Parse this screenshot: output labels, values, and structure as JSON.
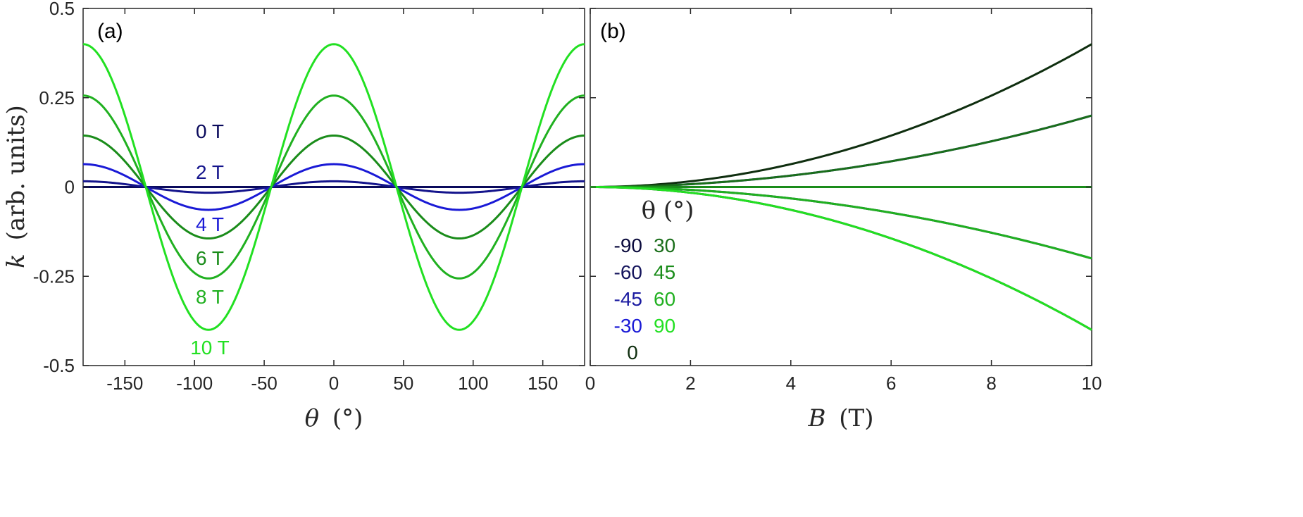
{
  "chart_data": [
    {
      "type": "line",
      "panel_label": "(a)",
      "xlabel_symbol": "θ",
      "xlabel_unit": "(°)",
      "ylabel_symbol": "k",
      "ylabel_unit": "(arb. units)",
      "xlim": [
        -180,
        180
      ],
      "ylim": [
        -0.5,
        0.5
      ],
      "xticks": [
        -150,
        -100,
        -50,
        0,
        50,
        100,
        150
      ],
      "xtick_labels": [
        "-150",
        "-100",
        "-50",
        "0",
        "50",
        "100",
        "150"
      ],
      "yticks": [
        -0.5,
        -0.25,
        0,
        0.25,
        0.5
      ],
      "ytick_labels": [
        "-0.5",
        "-0.25",
        "0",
        "0.25",
        "0.5"
      ],
      "grid": false,
      "model": "k = 0.004 * B^2 * cos(2*theta)",
      "series": [
        {
          "name": "0 T",
          "B": 0,
          "color": "#0a0a5c",
          "amplitude": 0.0
        },
        {
          "name": "2 T",
          "B": 2,
          "color": "#14148c",
          "amplitude": 0.016
        },
        {
          "name": "4 T",
          "B": 4,
          "color": "#1a1ad6",
          "amplitude": 0.064
        },
        {
          "name": "6 T",
          "B": 6,
          "color": "#1a8c1a",
          "amplitude": 0.144
        },
        {
          "name": "8 T",
          "B": 8,
          "color": "#20b020",
          "amplitude": 0.256
        },
        {
          "name": "10 T",
          "B": 10,
          "color": "#22e022",
          "amplitude": 0.4
        }
      ],
      "annotations": [
        {
          "text": "0 T",
          "color": "#0a0a5c"
        },
        {
          "text": "2 T",
          "color": "#14148c"
        },
        {
          "text": "4 T",
          "color": "#1a1ad6"
        },
        {
          "text": "6 T",
          "color": "#1a8c1a"
        },
        {
          "text": "8 T",
          "color": "#20b020"
        },
        {
          "text": "10 T",
          "color": "#22e022"
        }
      ]
    },
    {
      "type": "line",
      "panel_label": "(b)",
      "xlabel_symbol": "B",
      "xlabel_unit": "(T)",
      "xlim": [
        0,
        10
      ],
      "ylim": [
        -0.5,
        0.5
      ],
      "xticks": [
        0,
        2,
        4,
        6,
        8,
        10
      ],
      "xtick_labels": [
        "0",
        "2",
        "4",
        "6",
        "8",
        "10"
      ],
      "grid": false,
      "model": "k = 0.004 * B^2 * cos(2*theta)",
      "legend_title": "θ (°)",
      "series": [
        {
          "name": "-90",
          "theta": -90,
          "color": "#0a1a0a",
          "end_value": -0.4
        },
        {
          "name": "-60",
          "theta": -60,
          "color": "#14145c",
          "end_value": -0.2
        },
        {
          "name": "-45",
          "theta": -45,
          "color": "#1a1ad6",
          "end_value": 0.0
        },
        {
          "name": "-30",
          "theta": -30,
          "color": "#1a1ab0",
          "end_value": 0.2
        },
        {
          "name": "0",
          "theta": 0,
          "color": "#0f2e0f",
          "end_value": 0.4
        },
        {
          "name": "30",
          "theta": 30,
          "color": "#1a6e1a",
          "end_value": 0.2
        },
        {
          "name": "45",
          "theta": 45,
          "color": "#1a8c1a",
          "end_value": 0.0
        },
        {
          "name": "60",
          "theta": 60,
          "color": "#20b020",
          "end_value": -0.2
        },
        {
          "name": "90",
          "theta": 90,
          "color": "#22e022",
          "end_value": -0.4
        }
      ],
      "legend": {
        "left_column": [
          {
            "text": "-90",
            "color": "#0a0a3c"
          },
          {
            "text": "-60",
            "color": "#14145c"
          },
          {
            "text": "-45",
            "color": "#1a1aa0"
          },
          {
            "text": "-30",
            "color": "#1a1ad6"
          },
          {
            "text": "0",
            "color": "#0f2e0f"
          }
        ],
        "right_column": [
          {
            "text": "30",
            "color": "#1a6e1a"
          },
          {
            "text": "45",
            "color": "#1a8c1a"
          },
          {
            "text": "60",
            "color": "#20b020"
          },
          {
            "text": "90",
            "color": "#22e022"
          }
        ]
      }
    }
  ]
}
